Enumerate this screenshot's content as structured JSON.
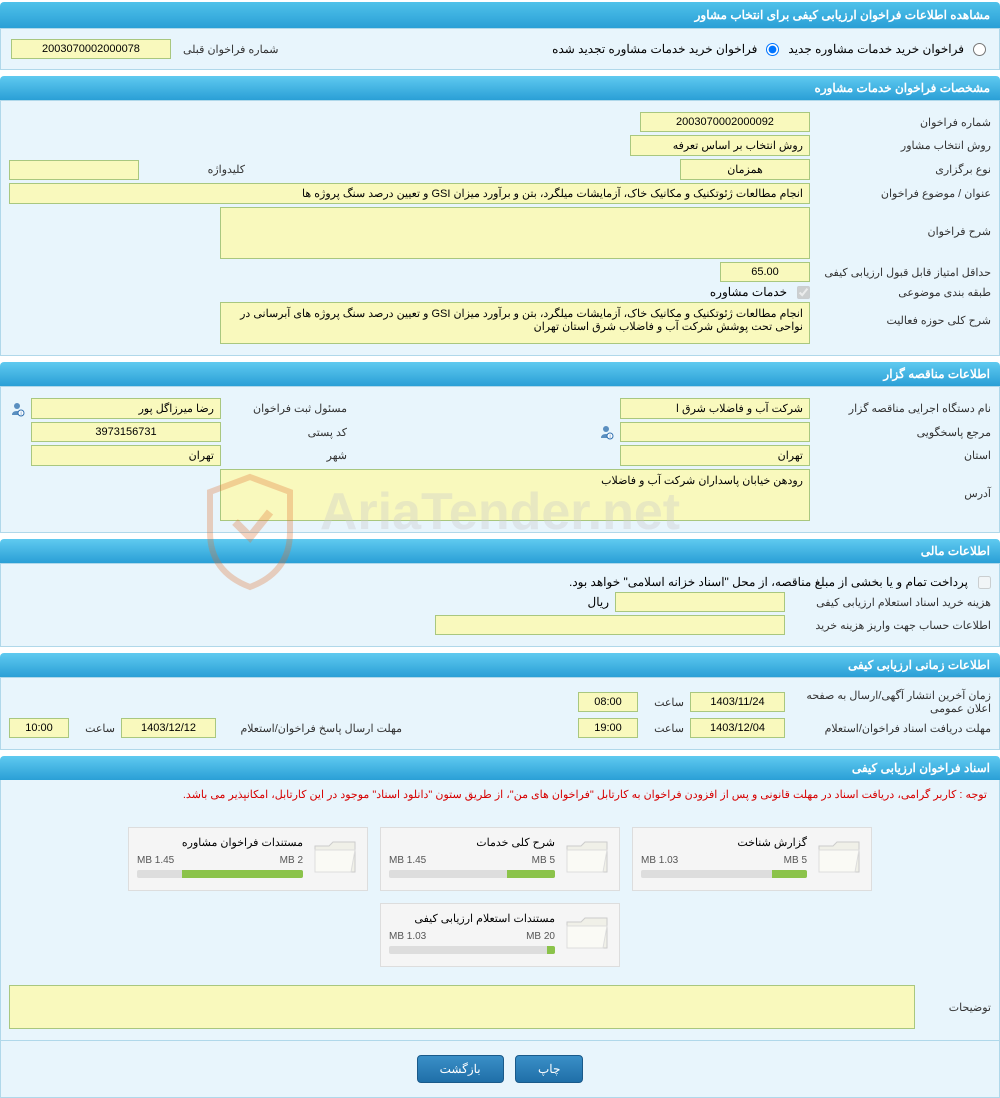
{
  "page_title": "مشاهده اطلاعات فراخوان ارزیابی کیفی برای انتخاب مشاور",
  "top": {
    "radio_new": "فراخوان خرید خدمات مشاوره جدید",
    "radio_renew": "فراخوان خرید خدمات مشاوره تجدید شده",
    "prev_num_label": "شماره فراخوان قبلی",
    "prev_num": "2003070002000078"
  },
  "sec1_title": "مشخصات فراخوان خدمات مشاوره",
  "sec1": {
    "num_label": "شماره فراخوان",
    "num": "2003070002000092",
    "method_label": "روش انتخاب مشاور",
    "method": "روش انتخاب بر اساس تعرفه",
    "type_label": "نوع برگزاری",
    "type": "همزمان",
    "keyword_label": "کلیدواژه",
    "keyword": "",
    "subject_label": "عنوان / موضوع فراخوان",
    "subject": "انجام مطالعات ژئوتکنیک و مکانیک خاک، آزمایشات میلگرد، بتن و برآورد میزان GSI و تعیین درصد سنگ پروژه ها",
    "desc_label": "شرح فراخوان",
    "desc": "",
    "score_label": "حداقل امتیاز قابل قبول ارزیابی کیفی",
    "score": "65.00",
    "cat_label": "طبقه بندی موضوعی",
    "cat_chk": "خدمات مشاوره",
    "scope_label": "شرح کلی حوزه فعالیت",
    "scope": "انجام مطالعات ژئوتکنیک و مکانیک خاک، آزمایشات میلگرد، بتن و برآورد میزان GSI و تعیین درصد سنگ پروژه های آبرسانی در نواحی تحت پوشش شرکت آب و فاضلاب شرق استان تهران"
  },
  "sec2_title": "اطلاعات مناقصه گزار",
  "sec2": {
    "org_label": "نام دستگاه اجرایی مناقصه گزار",
    "org": "شرکت آب و فاضلاب شرق ا",
    "reg_label": "مسئول ثبت فراخوان",
    "reg": "رضا میرزاگل پور",
    "resp_label": "مرجع پاسخگویی",
    "resp": "",
    "postal_label": "کد پستی",
    "postal": "3973156731",
    "province_label": "استان",
    "province": "تهران",
    "city_label": "شهر",
    "city": "تهران",
    "addr_label": "آدرس",
    "addr": "رودهن خیابان پاسداران شرکت آب و فاضلاب"
  },
  "sec3_title": "اطلاعات مالی",
  "sec3": {
    "payment_note": "پرداخت تمام و یا بخشی از مبلغ مناقصه، از محل \"اسناد خزانه اسلامی\" خواهد بود.",
    "fee_label": "هزینه خرید اسناد استعلام ارزیابی کیفی",
    "fee": "",
    "rial": "ریال",
    "acc_label": "اطلاعات حساب جهت واریز هزینه خرید",
    "acc": ""
  },
  "sec4_title": "اطلاعات زمانی ارزیابی کیفی",
  "sec4": {
    "pub_label": "زمان آخرین انتشار آگهی/ارسال به صفحه اعلان عمومی",
    "pub_date": "1403/11/24",
    "pub_time_lbl": "ساعت",
    "pub_time": "08:00",
    "recv_label": "مهلت دریافت اسناد فراخوان/استعلام",
    "recv_date": "1403/12/04",
    "recv_time": "19:00",
    "resp_label": "مهلت ارسال پاسخ فراخوان/استعلام",
    "resp_date": "1403/12/12",
    "resp_time": "10:00"
  },
  "sec5_title": "اسناد فراخوان ارزیابی کیفی",
  "notice": "توجه : کاربر گرامی، دریافت اسناد در مهلت قانونی و پس از افزودن فراخوان به کارتابل \"فراخوان های من\"، از طریق ستون \"دانلود اسناد\" موجود در این کارتابل، امکانپذیر می باشد.",
  "docs": [
    {
      "title": "گزارش شناخت",
      "used": "1.03 MB",
      "total": "5 MB",
      "pct": 21
    },
    {
      "title": "شرح کلی خدمات",
      "used": "1.45 MB",
      "total": "5 MB",
      "pct": 29
    },
    {
      "title": "مستندات فراخوان مشاوره",
      "used": "1.45 MB",
      "total": "2 MB",
      "pct": 73
    },
    {
      "title": "مستندات استعلام ارزیابی کیفی",
      "used": "1.03 MB",
      "total": "20 MB",
      "pct": 5
    }
  ],
  "remarks_label": "توضیحات",
  "remarks": "",
  "btn_print": "چاپ",
  "btn_back": "بازگشت",
  "colors": {
    "header_bg": "#2a9fd6",
    "field_bg": "#f9f9bd",
    "field_border": "#a9c77f",
    "btn_bg": "#1f6fa8",
    "note_color": "#d60000",
    "section_bg": "#e8f5fc"
  }
}
